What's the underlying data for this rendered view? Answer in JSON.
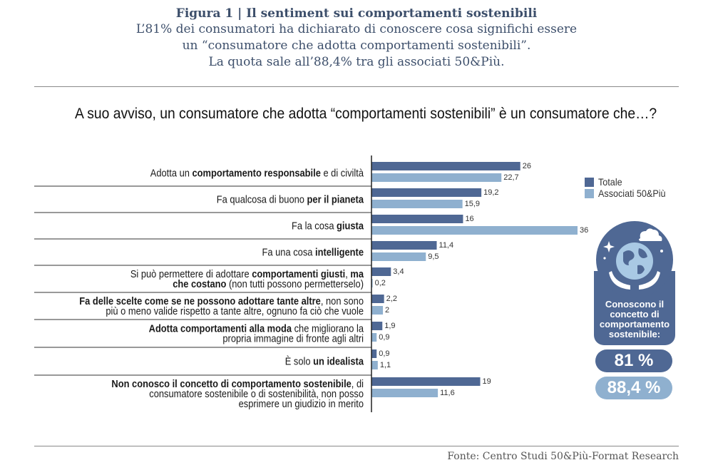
{
  "header": {
    "title": "Figura 1 | Il sentiment sui comportamenti sostenibili",
    "subtitle_lines": [
      "L’81% dei consumatori ha dichiarato di conoscere cosa significhi essere",
      "un “consumatore che adotta comportamenti sostenibili”.",
      "La quota sale all’88,4% tra gli associati 50&Più."
    ]
  },
  "question": "A suo avviso, un consumatore che adotta “comportamenti sostenibili” è un consumatore che…?",
  "legend": {
    "totale": "Totale",
    "associati": "Associati 50&Più"
  },
  "badge": {
    "text": "Conoscono il concetto di comportamento sostenibile:",
    "value_totale": "81 %",
    "value_associati": "88,4 %"
  },
  "source": "Fonte: Centro Studi 50&Più-Format Research",
  "colors": {
    "totale": "#4f6894",
    "associati": "#8fb0cf",
    "title": "#3d4f6b"
  },
  "chart_data": {
    "type": "bar",
    "orientation": "horizontal",
    "categories": [
      [
        {
          "t": "Adotta un "
        },
        {
          "t": "comportamento responsabile",
          "b": true
        },
        {
          "t": " e di civiltà"
        }
      ],
      [
        {
          "t": "Fa qualcosa di buono "
        },
        {
          "t": "per il pianeta",
          "b": true
        }
      ],
      [
        {
          "t": "Fa la cosa "
        },
        {
          "t": "giusta",
          "b": true
        }
      ],
      [
        {
          "t": "Fa una cosa "
        },
        {
          "t": "intelligente",
          "b": true
        }
      ],
      [
        {
          "t": "Si può permettere di adottare "
        },
        {
          "t": "comportamenti giusti",
          "b": true
        },
        {
          "t": ", "
        },
        {
          "t": "ma",
          "b": true
        },
        {
          "br": true
        },
        {
          "t": "che costano",
          "b": true
        },
        {
          "t": " (non tutti possono permetterselo)"
        }
      ],
      [
        {
          "t": "Fa delle scelte come se ne possono adottare tante altre",
          "b": true
        },
        {
          "t": ", non sono"
        },
        {
          "br": true
        },
        {
          "t": "più o meno valide rispetto a tante altre, ognuno fa ciò che vuole"
        }
      ],
      [
        {
          "t": "Adotta comportamenti alla moda",
          "b": true
        },
        {
          "t": " che migliorano la"
        },
        {
          "br": true
        },
        {
          "t": "propria immagine di fronte agli altri"
        }
      ],
      [
        {
          "t": "È solo "
        },
        {
          "t": "un idealista",
          "b": true
        }
      ],
      [
        {
          "t": "Non conosco il concetto di comportamento sostenibile",
          "b": true
        },
        {
          "t": ", di"
        },
        {
          "br": true
        },
        {
          "t": "consumatore sostenibile o di sostenibilità, non posso"
        },
        {
          "br": true
        },
        {
          "t": "esprimere un giudizio in merito"
        }
      ]
    ],
    "series": [
      {
        "name": "Totale",
        "values": [
          26,
          19.2,
          16,
          11.4,
          3.4,
          2.2,
          1.9,
          0.9,
          19
        ],
        "labels": [
          "26",
          "19,2",
          "16",
          "11,4",
          "3,4",
          "2,2",
          "1,9",
          "0,9",
          "19"
        ]
      },
      {
        "name": "Associati 50&Più",
        "values": [
          22.7,
          15.9,
          36,
          9.5,
          0.2,
          2,
          0.9,
          1.1,
          11.6
        ],
        "labels": [
          "22,7",
          "15,9",
          "36",
          "9,5",
          "0,2",
          "2",
          "0,9",
          "1,1",
          "11,6"
        ]
      }
    ],
    "xlim": [
      0,
      36
    ],
    "legend_position": "right"
  }
}
